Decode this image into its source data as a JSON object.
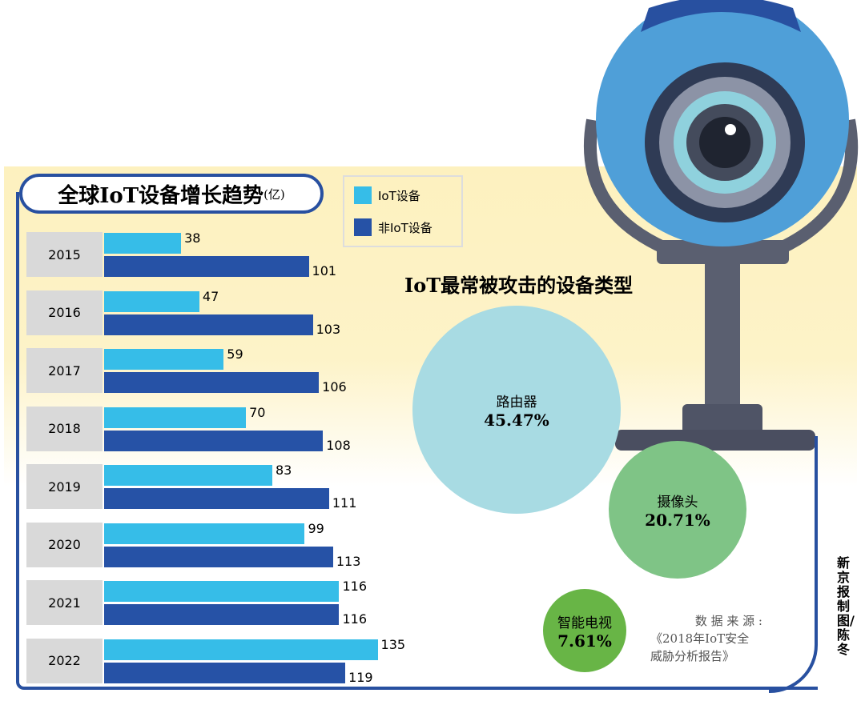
{
  "chart_data": [
    {
      "type": "bar",
      "orientation": "horizontal",
      "title": "全球IoT设备增长趋势",
      "unit": "(亿)",
      "categories": [
        "2015",
        "2016",
        "2017",
        "2018",
        "2019",
        "2020",
        "2021",
        "2022"
      ],
      "series": [
        {
          "name": "IoT设备",
          "color": "#36bde8",
          "values": [
            38,
            47,
            59,
            70,
            83,
            99,
            116,
            135
          ]
        },
        {
          "name": "非IoT设备",
          "color": "#2652a6",
          "values": [
            101,
            103,
            106,
            108,
            111,
            113,
            116,
            119
          ]
        }
      ],
      "legend": "top-right"
    },
    {
      "type": "bubble",
      "title": "IoT最常被攻击的设备类型",
      "items": [
        {
          "label": "路由器",
          "value": "45.47%",
          "color": "#a8dbe3"
        },
        {
          "label": "摄像头",
          "value": "20.71%",
          "color": "#7fc486"
        },
        {
          "label": "智能电视",
          "value": "7.61%",
          "color": "#68b546"
        }
      ]
    }
  ],
  "source": {
    "line1": "数 据 来 源 :",
    "line2": "《2018年IoT安全",
    "line3": "威胁分析报告》"
  },
  "credit": "新京报制图/陈冬"
}
